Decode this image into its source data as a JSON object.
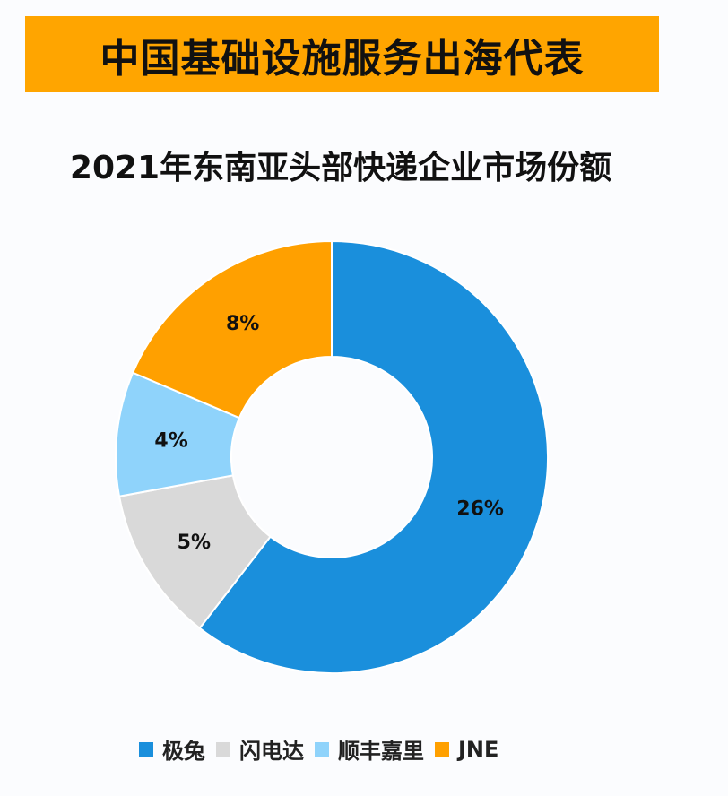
{
  "banner": {
    "text": "中国基础设施服务出海代表",
    "color": "#ffa500"
  },
  "chart_data": {
    "type": "pie",
    "variant": "donut",
    "title": "2021年东南亚头部快递企业市场份额",
    "categories": [
      "极兔",
      "闪电达",
      "顺丰嘉里",
      "JNE"
    ],
    "values": [
      26,
      5,
      4,
      8
    ],
    "labels": [
      "26%",
      "5%",
      "4%",
      "8%"
    ],
    "colors": [
      "#1a8fdc",
      "#d9d9d9",
      "#8fd3fb",
      "#ffa000"
    ],
    "start": "12 o'clock",
    "direction": "clockwise",
    "legend_position": "bottom"
  }
}
